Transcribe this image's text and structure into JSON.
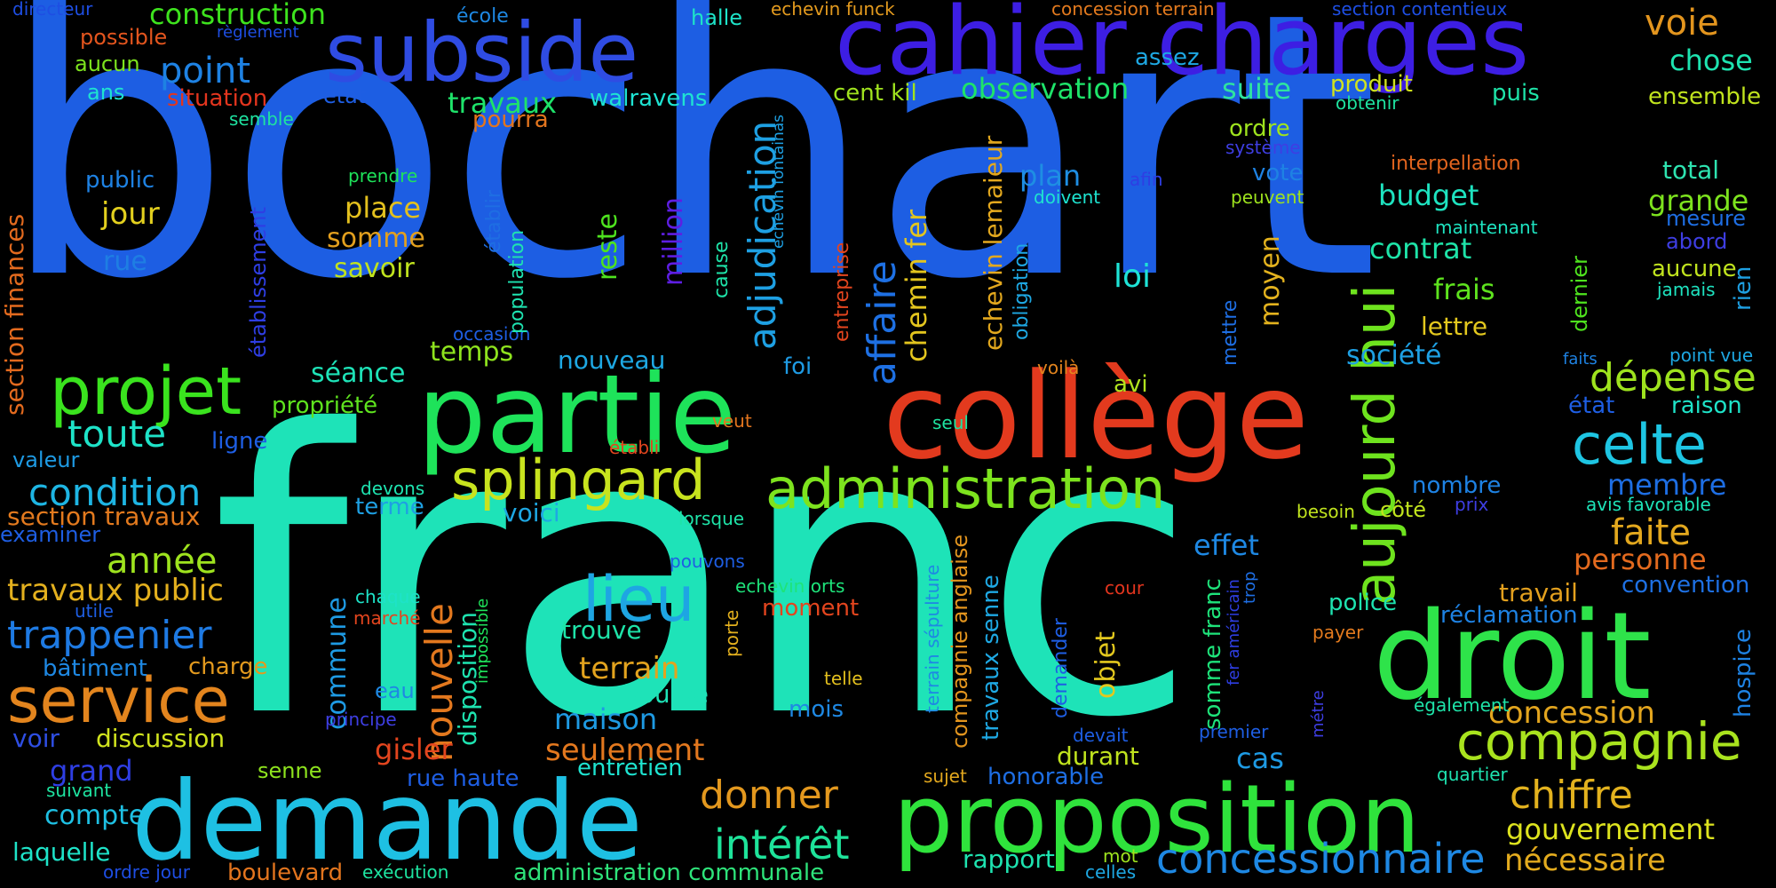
{
  "words": [
    {
      "text": "bochart",
      "color": "#1d5ee3"
    },
    {
      "text": "franc",
      "color": "#1ee3b8"
    },
    {
      "text": "cahier charges",
      "color": "#3d1ee3"
    },
    {
      "text": "partie",
      "color": "#1ee35a"
    },
    {
      "text": "collège",
      "color": "#e33a1e"
    },
    {
      "text": "droit",
      "color": "#2ee34a"
    },
    {
      "text": "demande",
      "color": "#1ec0e3"
    },
    {
      "text": "proposition",
      "color": "#2fe33c"
    },
    {
      "text": "subside",
      "color": "#2f4ce3"
    },
    {
      "text": "administration",
      "color": "#7de31e"
    },
    {
      "text": "splingard",
      "color": "#c8e31e"
    },
    {
      "text": "compagnie",
      "color": "#a9e31e"
    },
    {
      "text": "projet",
      "color": "#3ae31e"
    },
    {
      "text": "service",
      "color": "#e3851e"
    },
    {
      "text": "lieu",
      "color": "#1ea5e3"
    },
    {
      "text": "celte",
      "color": "#1ec5e3"
    },
    {
      "text": "aujourd hui",
      "color": "#6ee31e"
    },
    {
      "text": "concessionnaire",
      "color": "#1e88e3"
    },
    {
      "text": "affaire",
      "color": "#1e70e3"
    },
    {
      "text": "adjudication",
      "color": "#1ea0e3"
    },
    {
      "text": "nouvelle",
      "color": "#e3781e"
    },
    {
      "text": "intérêt",
      "color": "#1ee39a"
    },
    {
      "text": "trappenier",
      "color": "#1e7ae3"
    },
    {
      "text": "chiffre",
      "color": "#e3b21e"
    },
    {
      "text": "gouvernement",
      "color": "#dde31e"
    },
    {
      "text": "concession",
      "color": "#e3a51e"
    },
    {
      "text": "dépense",
      "color": "#9ee31e"
    },
    {
      "text": "condition",
      "color": "#1eb5e3"
    },
    {
      "text": "toute",
      "color": "#1ee3c8"
    },
    {
      "text": "année",
      "color": "#9ee31e"
    },
    {
      "text": "travaux public",
      "color": "#e3b01e"
    },
    {
      "text": "faite",
      "color": "#e3a81e"
    },
    {
      "text": "personne",
      "color": "#e36a1e"
    },
    {
      "text": "donner",
      "color": "#e3981e"
    },
    {
      "text": "seulement",
      "color": "#e3781e"
    },
    {
      "text": "maison",
      "color": "#1e9ae3"
    },
    {
      "text": "terrain",
      "color": "#e3a31e"
    },
    {
      "text": "nécessaire",
      "color": "#e3ab1e"
    },
    {
      "text": "chemin fer",
      "color": "#e3c51e"
    },
    {
      "text": "construction",
      "color": "#3ee31e"
    },
    {
      "text": "point",
      "color": "#1e82e3"
    },
    {
      "text": "voie",
      "color": "#e3951e"
    },
    {
      "text": "chose",
      "color": "#1ee3b0"
    },
    {
      "text": "observation",
      "color": "#1ee36a"
    },
    {
      "text": "suite",
      "color": "#2ee3a0"
    },
    {
      "text": "travaux",
      "color": "#1ee36a"
    },
    {
      "text": "walravens",
      "color": "#1ee3d2"
    },
    {
      "text": "budget",
      "color": "#1ee3c0"
    },
    {
      "text": "contrat",
      "color": "#1ee3a8"
    },
    {
      "text": "frais",
      "color": "#5ee31e"
    },
    {
      "text": "loi",
      "color": "#1ee3d6"
    },
    {
      "text": "plan",
      "color": "#1e8ee3"
    },
    {
      "text": "société",
      "color": "#1ea0e3"
    },
    {
      "text": "lettre",
      "color": "#e3c81e"
    },
    {
      "text": "membre",
      "color": "#1e6ee3"
    },
    {
      "text": "grande",
      "color": "#7de31e"
    },
    {
      "text": "total",
      "color": "#2ee3b0"
    },
    {
      "text": "reste",
      "color": "#4ee31e"
    },
    {
      "text": "million",
      "color": "#5e1ee3"
    },
    {
      "text": "moyen",
      "color": "#e3b21e"
    },
    {
      "text": "place",
      "color": "#e3c01e"
    },
    {
      "text": "somme",
      "color": "#e3a01e"
    },
    {
      "text": "savoir",
      "color": "#c0e31e"
    },
    {
      "text": "jour",
      "color": "#e3d01e"
    },
    {
      "text": "rue",
      "color": "#1e7ee3"
    },
    {
      "text": "public",
      "color": "#1e82e3"
    },
    {
      "text": "temps",
      "color": "#8ee31e"
    },
    {
      "text": "séance",
      "color": "#1ee3b8"
    },
    {
      "text": "nouveau",
      "color": "#1ea8e3"
    },
    {
      "text": "propriété",
      "color": "#5ee31e"
    },
    {
      "text": "effet",
      "color": "#1e88e3"
    },
    {
      "text": "police",
      "color": "#1ee3b0"
    },
    {
      "text": "travail",
      "color": "#e3a01e"
    },
    {
      "text": "réclamation",
      "color": "#1e82e3"
    },
    {
      "text": "convention",
      "color": "#1e70e3"
    },
    {
      "text": "section finances",
      "color": "#e36a1e"
    },
    {
      "text": "établissement",
      "color": "#2e3ee3"
    },
    {
      "text": "section travaux",
      "color": "#e37a1e"
    },
    {
      "text": "gisler",
      "color": "#e3451e"
    },
    {
      "text": "discussion",
      "color": "#d0e31e"
    },
    {
      "text": "grand",
      "color": "#2e3ee3"
    },
    {
      "text": "voir",
      "color": "#2e4ee3"
    },
    {
      "text": "compte",
      "color": "#1ec0e3"
    },
    {
      "text": "laquelle",
      "color": "#1ee3c8"
    },
    {
      "text": "bâtiment",
      "color": "#1e88e3"
    },
    {
      "text": "charge",
      "color": "#e39a1e"
    },
    {
      "text": "valeur",
      "color": "#1e9ae3"
    },
    {
      "text": "examiner",
      "color": "#1e5ee3"
    },
    {
      "text": "commune",
      "color": "#1e9ae3"
    },
    {
      "text": "objet",
      "color": "#e3c81e"
    },
    {
      "text": "entretien",
      "color": "#1ee3d0"
    },
    {
      "text": "rue haute",
      "color": "#1e5ee3"
    },
    {
      "text": "cas",
      "color": "#1e9ae3"
    },
    {
      "text": "durant",
      "color": "#c0e31e"
    },
    {
      "text": "honorable",
      "color": "#1e6ee3"
    },
    {
      "text": "rapport",
      "color": "#1ee3b0"
    },
    {
      "text": "administration communale",
      "color": "#2ee37a"
    },
    {
      "text": "boulevard",
      "color": "#e3751e"
    },
    {
      "text": "ordre jour",
      "color": "#1e4ee3"
    },
    {
      "text": "exécution",
      "color": "#1ee3a0"
    },
    {
      "text": "bourse",
      "color": "#1ee3b8"
    },
    {
      "text": "trouve",
      "color": "#1ee3a8"
    },
    {
      "text": "moment",
      "color": "#e3451e"
    },
    {
      "text": "voici",
      "color": "#1ea8e3"
    },
    {
      "text": "terme",
      "color": "#1ea0e3"
    },
    {
      "text": "ligne",
      "color": "#1e5ee3"
    },
    {
      "text": "directeur",
      "color": "#1e4ee3"
    },
    {
      "text": "école",
      "color": "#1e88e3"
    },
    {
      "text": "halle",
      "color": "#1ee3c8"
    },
    {
      "text": "echevin funck",
      "color": "#e39a1e"
    },
    {
      "text": "concession terrain",
      "color": "#e37a1e"
    },
    {
      "text": "section contentieux",
      "color": "#1e4ee3"
    },
    {
      "text": "possible",
      "color": "#e3551e"
    },
    {
      "text": "règlement",
      "color": "#1e4ee3"
    },
    {
      "text": "aucun",
      "color": "#7de31e"
    },
    {
      "text": "ans",
      "color": "#1ee3d0"
    },
    {
      "text": "situation",
      "color": "#e3351e"
    },
    {
      "text": "etat",
      "color": "#1e5ee3"
    },
    {
      "text": "semble",
      "color": "#1ee3a0"
    },
    {
      "text": "pourra",
      "color": "#e3751e"
    },
    {
      "text": "assez",
      "color": "#1ea8e3"
    },
    {
      "text": "cent kil",
      "color": "#a0e31e"
    },
    {
      "text": "produit",
      "color": "#d0e31e"
    },
    {
      "text": "obtenir",
      "color": "#1ee3a0"
    },
    {
      "text": "puis",
      "color": "#1ee3a8"
    },
    {
      "text": "ensemble",
      "color": "#c0e31e"
    },
    {
      "text": "ordre",
      "color": "#9ee31e"
    },
    {
      "text": "système",
      "color": "#3e3ee3"
    },
    {
      "text": "interpellation",
      "color": "#e3651e"
    },
    {
      "text": "vote",
      "color": "#1e82e3"
    },
    {
      "text": "peuvent",
      "color": "#9ee31e"
    },
    {
      "text": "maintenant",
      "color": "#1ee3c0"
    },
    {
      "text": "mesure",
      "color": "#1e6ee3"
    },
    {
      "text": "abord",
      "color": "#3e3ee3"
    },
    {
      "text": "aucune",
      "color": "#c0e31e"
    },
    {
      "text": "jamais",
      "color": "#1ee3c0"
    },
    {
      "text": "rien",
      "color": "#1ea0e3"
    },
    {
      "text": "point vue",
      "color": "#1ea8e3"
    },
    {
      "text": "faits",
      "color": "#1e82e3"
    },
    {
      "text": "état",
      "color": "#1e5ee3"
    },
    {
      "text": "raison",
      "color": "#1ee3c8"
    },
    {
      "text": "hospice",
      "color": "#1e82e3"
    },
    {
      "text": "avis favorable",
      "color": "#1ee3b8"
    },
    {
      "text": "nombre",
      "color": "#1e82e3"
    },
    {
      "text": "prix",
      "color": "#3e3ee3"
    },
    {
      "text": "besoin",
      "color": "#c0e31e"
    },
    {
      "text": "côté",
      "color": "#c0e31e"
    },
    {
      "text": "cour",
      "color": "#e3351e"
    },
    {
      "text": "payer",
      "color": "#e37a1e"
    },
    {
      "text": "métre",
      "color": "#3e3ee3"
    },
    {
      "text": "également",
      "color": "#1ee3a8"
    },
    {
      "text": "premier",
      "color": "#1e5ee3"
    },
    {
      "text": "quartier",
      "color": "#1ee3b0"
    },
    {
      "text": "sujet",
      "color": "#e3a81e"
    },
    {
      "text": "mot",
      "color": "#9ee31e"
    },
    {
      "text": "celles",
      "color": "#1ea8e3"
    },
    {
      "text": "devait",
      "color": "#1e5ee3"
    },
    {
      "text": "prendre",
      "color": "#1ee35a"
    },
    {
      "text": "afin",
      "color": "#2e3ee3"
    },
    {
      "text": "doivent",
      "color": "#1ee3d0"
    },
    {
      "text": "voilà",
      "color": "#e3851e"
    },
    {
      "text": "seul",
      "color": "#1ee3a0"
    },
    {
      "text": "veut",
      "color": "#e3751e"
    },
    {
      "text": "établi",
      "color": "#e3451e"
    },
    {
      "text": "foi",
      "color": "#1e9ae3"
    },
    {
      "text": "avi",
      "color": "#b0e31e"
    },
    {
      "text": "lorsque",
      "color": "#1ee3a8"
    },
    {
      "text": "pouvons",
      "color": "#1e5ee3"
    },
    {
      "text": "echevin orts",
      "color": "#1ee37a"
    },
    {
      "text": "telle",
      "color": "#e3c01e"
    },
    {
      "text": "mois",
      "color": "#1e88e3"
    },
    {
      "text": "devons",
      "color": "#1ee3b0"
    },
    {
      "text": "occasion",
      "color": "#1e5ee3"
    },
    {
      "text": "chaque",
      "color": "#1ee3c8"
    },
    {
      "text": "marché",
      "color": "#e3451e"
    },
    {
      "text": "eau",
      "color": "#1e88e3"
    },
    {
      "text": "principe",
      "color": "#3e3ee3"
    },
    {
      "text": "utile",
      "color": "#1e5ee3"
    },
    {
      "text": "suivant",
      "color": "#1ee3a0"
    },
    {
      "text": "senne",
      "color": "#8ee31e"
    },
    {
      "text": "mettre",
      "color": "#1e6ee3"
    },
    {
      "text": "echevin lemaieur",
      "color": "#e3a81e"
    },
    {
      "text": "obligation",
      "color": "#1ea8e3"
    },
    {
      "text": "entreprise",
      "color": "#e3451e"
    },
    {
      "text": "cause",
      "color": "#1ee3a8"
    },
    {
      "text": "echevin fontainas",
      "color": "#1ea0e3"
    },
    {
      "text": "population",
      "color": "#1ee3b0"
    },
    {
      "text": "établir",
      "color": "#1e6ee3"
    },
    {
      "text": "disposition",
      "color": "#1ee3b0"
    },
    {
      "text": "impossible",
      "color": "#1ee35a"
    },
    {
      "text": "porte",
      "color": "#e3b01e"
    },
    {
      "text": "terrain sépulture",
      "color": "#1e88e3"
    },
    {
      "text": "compagnie anglaise",
      "color": "#e3951e"
    },
    {
      "text": "travaux senne",
      "color": "#1ea8e3"
    },
    {
      "text": "demander",
      "color": "#1e5ee3"
    },
    {
      "text": "somme franc",
      "color": "#1ee37a"
    },
    {
      "text": "fer américain",
      "color": "#2e3ee3"
    },
    {
      "text": "trop",
      "color": "#1e6ee3"
    },
    {
      "text": "dernier",
      "color": "#4ee31e"
    }
  ]
}
